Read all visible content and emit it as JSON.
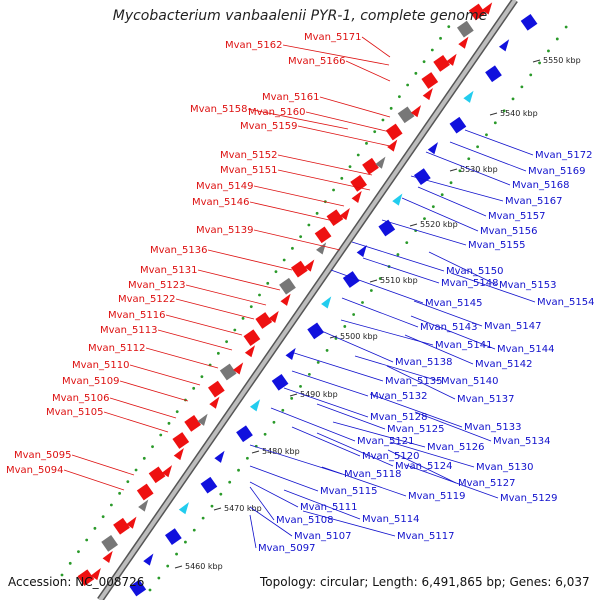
{
  "title": "Mycobacterium vanbaalenii PYR-1, complete genome",
  "footer": {
    "accession": "Accession: NC_008726",
    "summary": "Topology: circular; Length: 6,491,865 bp; Genes: 6,037"
  },
  "colors": {
    "left_label": "#dd1111",
    "right_label": "#1111cc",
    "backbone": "#8a8a8a",
    "tick_dots": "#2a9a2a"
  },
  "scale_marks": [
    "5460 kbp",
    "5470 kbp",
    "5480 kbp",
    "5490 kbp",
    "5500 kbp",
    "5510 kbp",
    "5520 kbp",
    "5530 kbp",
    "5540 kbp",
    "5550 kbp"
  ],
  "left_labels": [
    "Mvan_5171",
    "Mvan_5162",
    "Mvan_5166",
    "Mvan_5161",
    "Mvan_5158",
    "Mvan_5160",
    "Mvan_5159",
    "Mvan_5152",
    "Mvan_5151",
    "Mvan_5149",
    "Mvan_5146",
    "Mvan_5139",
    "Mvan_5136",
    "Mvan_5131",
    "Mvan_5123",
    "Mvan_5122",
    "Mvan_5116",
    "Mvan_5113",
    "Mvan_5112",
    "Mvan_5110",
    "Mvan_5109",
    "Mvan_5106",
    "Mvan_5105",
    "Mvan_5095",
    "Mvan_5094"
  ],
  "right_labels": [
    "Mvan_5172",
    "Mvan_5169",
    "Mvan_5168",
    "Mvan_5167",
    "Mvan_5157",
    "Mvan_5156",
    "Mvan_5155",
    "Mvan_5150",
    "Mvan_5153",
    "Mvan_5148",
    "Mvan_5154",
    "Mvan_5145",
    "Mvan_5147",
    "Mvan_5143",
    "Mvan_5144",
    "Mvan_5141",
    "Mvan_5142",
    "Mvan_5138",
    "Mvan_5140",
    "Mvan_5135",
    "Mvan_5137",
    "Mvan_5132",
    "Mvan_5128",
    "Mvan_5133",
    "Mvan_5125",
    "Mvan_5134",
    "Mvan_5121",
    "Mvan_5126",
    "Mvan_5120",
    "Mvan_5124",
    "Mvan_5130",
    "Mvan_5118",
    "Mvan_5127",
    "Mvan_5115",
    "Mvan_5119",
    "Mvan_5129",
    "Mvan_5111",
    "Mvan_5114",
    "Mvan_5108",
    "Mvan_5117",
    "Mvan_5107",
    "Mvan_5097"
  ]
}
